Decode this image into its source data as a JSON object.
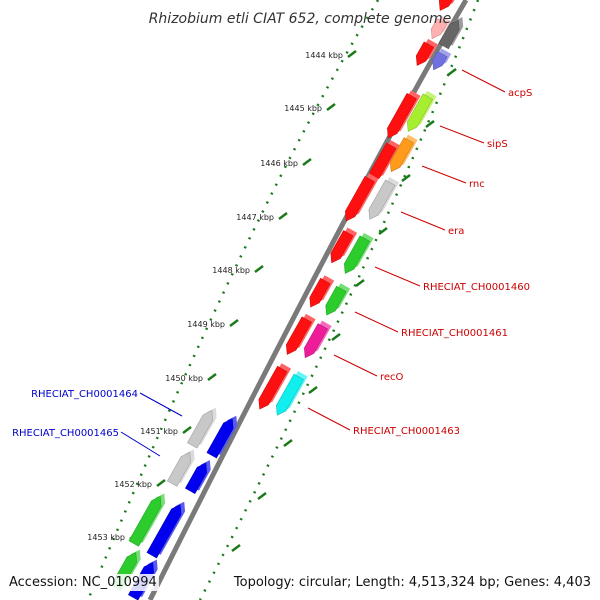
{
  "title": "Rhizobium etli CIAT 652, complete genome",
  "footer": {
    "accession": "Accession: NC_010994",
    "summary": "Topology: circular; Length: 4,513,324 bp; Genes: 4,403"
  },
  "ticks": [
    "1444 kbp",
    "1445 kbp",
    "1446 kbp",
    "1447 kbp",
    "1448 kbp",
    "1449 kbp",
    "1450 kbp",
    "1451 kbp",
    "1452 kbp",
    "1453 kbp"
  ],
  "colors": {
    "backbone": "#7a7a7a",
    "tick_mark": "#1a7a1a",
    "plus_label": "#cc0000",
    "minus_label": "#0000cc"
  },
  "genes_plus": [
    {
      "name": "acpS",
      "color": "#7070e0"
    },
    {
      "name": "sipS",
      "color": "#a8ee30"
    },
    {
      "name": "rnc",
      "color": "#ff9a1a"
    },
    {
      "name": "era",
      "color": "#c8c8c8"
    },
    {
      "name": "RHECIAT_CH0001460",
      "color": "#2ccc2c"
    },
    {
      "name": "RHECIAT_CH0001461",
      "color": "#2ccc2c"
    },
    {
      "name": "recO",
      "color": "#ee1c99"
    },
    {
      "name": "RHECIAT_CH0001463",
      "color": "#10eeee"
    }
  ],
  "genes_minus": [
    {
      "name": "RHECIAT_CH0001464",
      "color": "#0000ee"
    },
    {
      "name": "RHECIAT_CH0001465",
      "color": "#0000ee"
    }
  ],
  "unlabeled_colors": {
    "red": "#ff1010",
    "gray": "#c8c8c8",
    "blue": "#0000ee",
    "green": "#2ccc2c",
    "dark": "#666666",
    "pink": "#ffb0b0"
  }
}
